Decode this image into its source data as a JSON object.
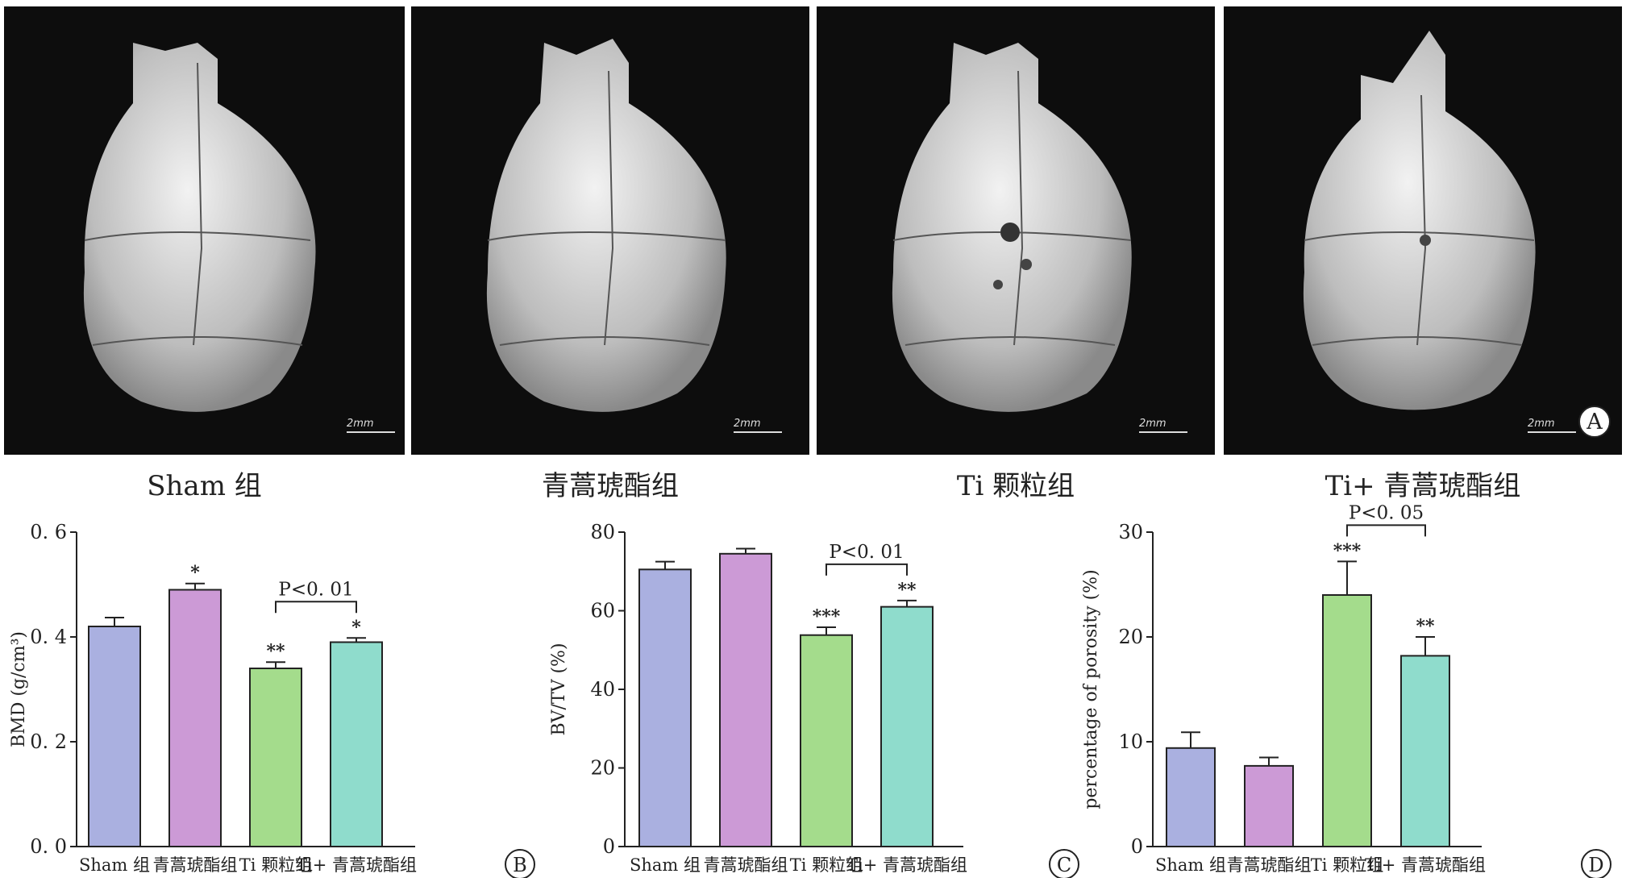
{
  "figure": {
    "panel_labels": [
      "A",
      "B",
      "C",
      "D"
    ],
    "image_panels": [
      {
        "caption": "Sham 组",
        "scale_bar": "2mm"
      },
      {
        "caption": "青蒿琥酯组",
        "scale_bar": "2mm"
      },
      {
        "caption": "Ti 颗粒组",
        "scale_bar": "2mm"
      },
      {
        "caption": "Ti+ 青蒿琥酯组",
        "scale_bar": "2mm"
      }
    ]
  },
  "colors": {
    "sham": "#aab0e0",
    "artesunate": "#cc9ad6",
    "ti": "#a4dc8c",
    "ti_artesunate": "#8fdccc",
    "image_bg": "#0d0d0d"
  },
  "chart_data": [
    {
      "type": "bar",
      "panel": "B",
      "categories": [
        "Sham 组",
        "青蒿琥酯组",
        "Ti 颗粒组",
        "Ti+ 青蒿琥酯组"
      ],
      "values": [
        0.42,
        0.49,
        0.34,
        0.39
      ],
      "errors": [
        0.017,
        0.012,
        0.012,
        0.008
      ],
      "significance": [
        "",
        "*",
        "**",
        "*"
      ],
      "bracket": {
        "from": 2,
        "to": 3,
        "label": "P<0. 01"
      },
      "ylabel": "BMD (g/cm³)",
      "ylim": [
        0,
        0.6
      ],
      "yticks": [
        0,
        0.2,
        0.4,
        0.6
      ],
      "ytick_labels": [
        "0. 0",
        "0. 2",
        "0. 4",
        "0. 6"
      ]
    },
    {
      "type": "bar",
      "panel": "C",
      "categories": [
        "Sham 组",
        "青蒿琥酯组",
        "Ti 颗粒组",
        "Ti+ 青蒿琥酯组"
      ],
      "values": [
        70.5,
        74.5,
        53.8,
        61.0
      ],
      "errors": [
        2.0,
        1.3,
        2.0,
        1.6
      ],
      "significance": [
        "",
        "",
        "***",
        "**"
      ],
      "bracket": {
        "from": 2,
        "to": 3,
        "label": "P<0. 01"
      },
      "ylabel": "BV/TV (%)",
      "ylim": [
        0,
        80
      ],
      "yticks": [
        0,
        20,
        40,
        60,
        80
      ],
      "ytick_labels": [
        "0",
        "20",
        "40",
        "60",
        "80"
      ]
    },
    {
      "type": "bar",
      "panel": "D",
      "categories": [
        "Sham 组",
        "青蒿琥酯组",
        "Ti 颗粒组",
        "Ti+ 青蒿琥酯组"
      ],
      "values": [
        9.4,
        7.7,
        24.0,
        18.2
      ],
      "errors": [
        1.5,
        0.8,
        3.2,
        1.8
      ],
      "significance": [
        "",
        "",
        "***",
        "**"
      ],
      "bracket": {
        "from": 2,
        "to": 3,
        "label": "P<0. 05"
      },
      "ylabel": "percentage of porosity (%)",
      "ylim": [
        0,
        30
      ],
      "yticks": [
        0,
        10,
        20,
        30
      ],
      "ytick_labels": [
        "0",
        "10",
        "20",
        "30"
      ]
    }
  ]
}
